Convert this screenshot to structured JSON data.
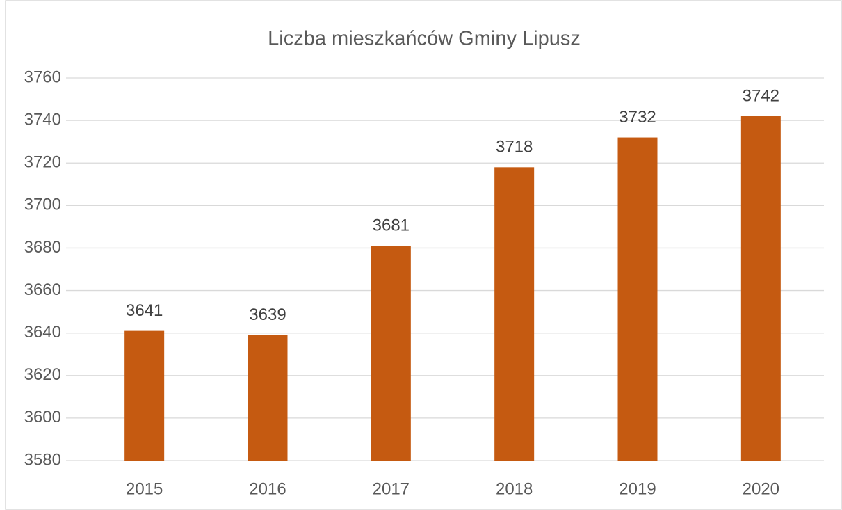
{
  "chart_data": {
    "type": "bar",
    "title": "Liczba mieszkańców Gminy Lipusz",
    "categories": [
      "2015",
      "2016",
      "2017",
      "2018",
      "2019",
      "2020"
    ],
    "values": [
      3641,
      3639,
      3681,
      3718,
      3732,
      3742
    ],
    "color": "#c55a11",
    "ylim": [
      3580,
      3760
    ],
    "yticks": [
      3580,
      3600,
      3620,
      3640,
      3660,
      3680,
      3700,
      3720,
      3740,
      3760
    ],
    "grid": true
  }
}
